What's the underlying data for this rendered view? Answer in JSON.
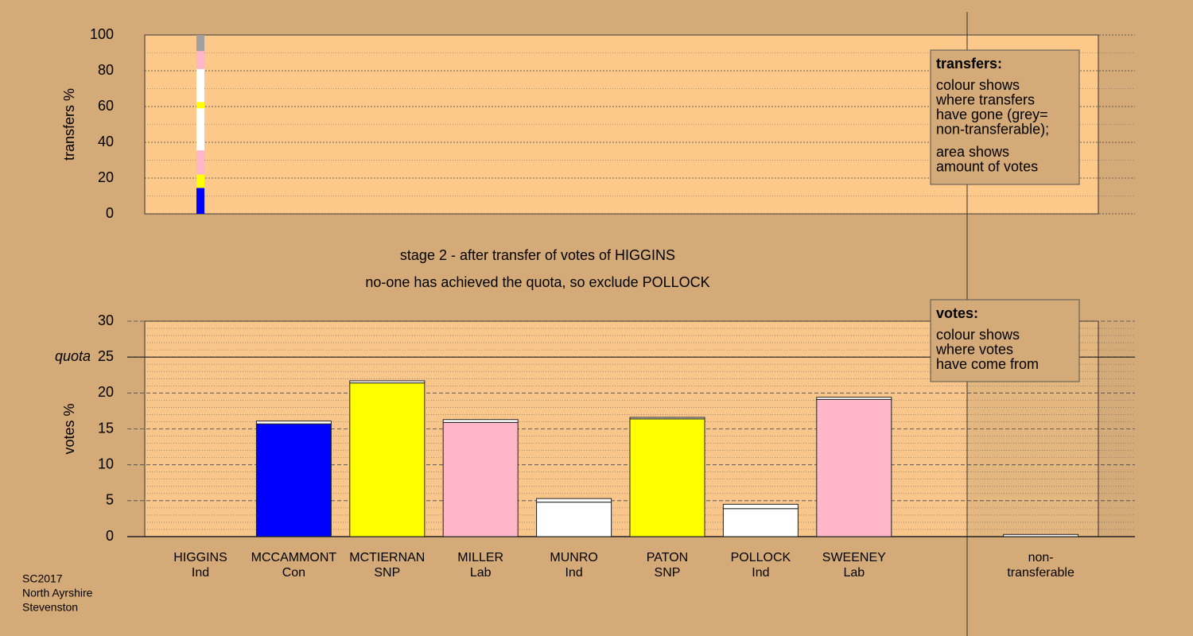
{
  "chart_data": [
    {
      "type": "stacked-column",
      "ylabel": "transfers %",
      "ylim": [
        0,
        100
      ],
      "yticks": [
        0,
        20,
        40,
        60,
        80,
        100
      ],
      "segments": {
        "values": [
          14.5,
          7.5,
          13.5,
          23.5,
          3.5,
          18.5,
          10,
          9
        ],
        "colors": [
          "#0000ff",
          "#ffff00",
          "#ffb6c8",
          "#ffffff",
          "#ffff00",
          "#ffffff",
          "#ffb6c8",
          "#a0a0a0"
        ]
      },
      "box": {
        "title": "transfers:",
        "lines": [
          "colour shows",
          "where transfers",
          "have gone (grey=",
          "non-transferable);"
        ],
        "lines2": [
          "area shows",
          "amount of votes"
        ]
      }
    },
    {
      "type": "bar",
      "subtitles": [
        "stage 2 - after transfer of votes of HIGGINS",
        "no-one has achieved the quota, so exclude POLLOCK"
      ],
      "ylabel": "votes %",
      "ylim": [
        0,
        30
      ],
      "yticks": [
        0,
        5,
        10,
        15,
        20,
        25,
        30
      ],
      "quota": {
        "value": 25,
        "label": "quota"
      },
      "categories": [
        "HIGGINS",
        "MCCAMMONT",
        "MCTIERNAN",
        "MILLER",
        "MUNRO",
        "PATON",
        "POLLOCK",
        "SWEENEY",
        "non-"
      ],
      "parties": [
        "Ind",
        "Con",
        "SNP",
        "Lab",
        "Ind",
        "SNP",
        "Ind",
        "Lab",
        "transferable"
      ],
      "series": [
        {
          "values": [
            0,
            15.7,
            21.4,
            15.9,
            4.8,
            16.4,
            3.9,
            19.1,
            0
          ],
          "colors": [
            "#ffffff",
            "#0000ff",
            "#ffff00",
            "#ffb6c8",
            "#ffffff",
            "#ffff00",
            "#ffffff",
            "#ffb6c8",
            "#ffffff"
          ]
        },
        {
          "values": [
            0,
            0.4,
            0.3,
            0.4,
            0.5,
            0.2,
            0.6,
            0.3,
            0.3
          ],
          "color": "#ffffff"
        }
      ],
      "box": {
        "title": "votes:",
        "lines": [
          "colour shows",
          "where votes",
          "have come from"
        ]
      }
    }
  ],
  "footer": [
    "SC2017",
    "North Ayrshire",
    "Stevenston"
  ]
}
